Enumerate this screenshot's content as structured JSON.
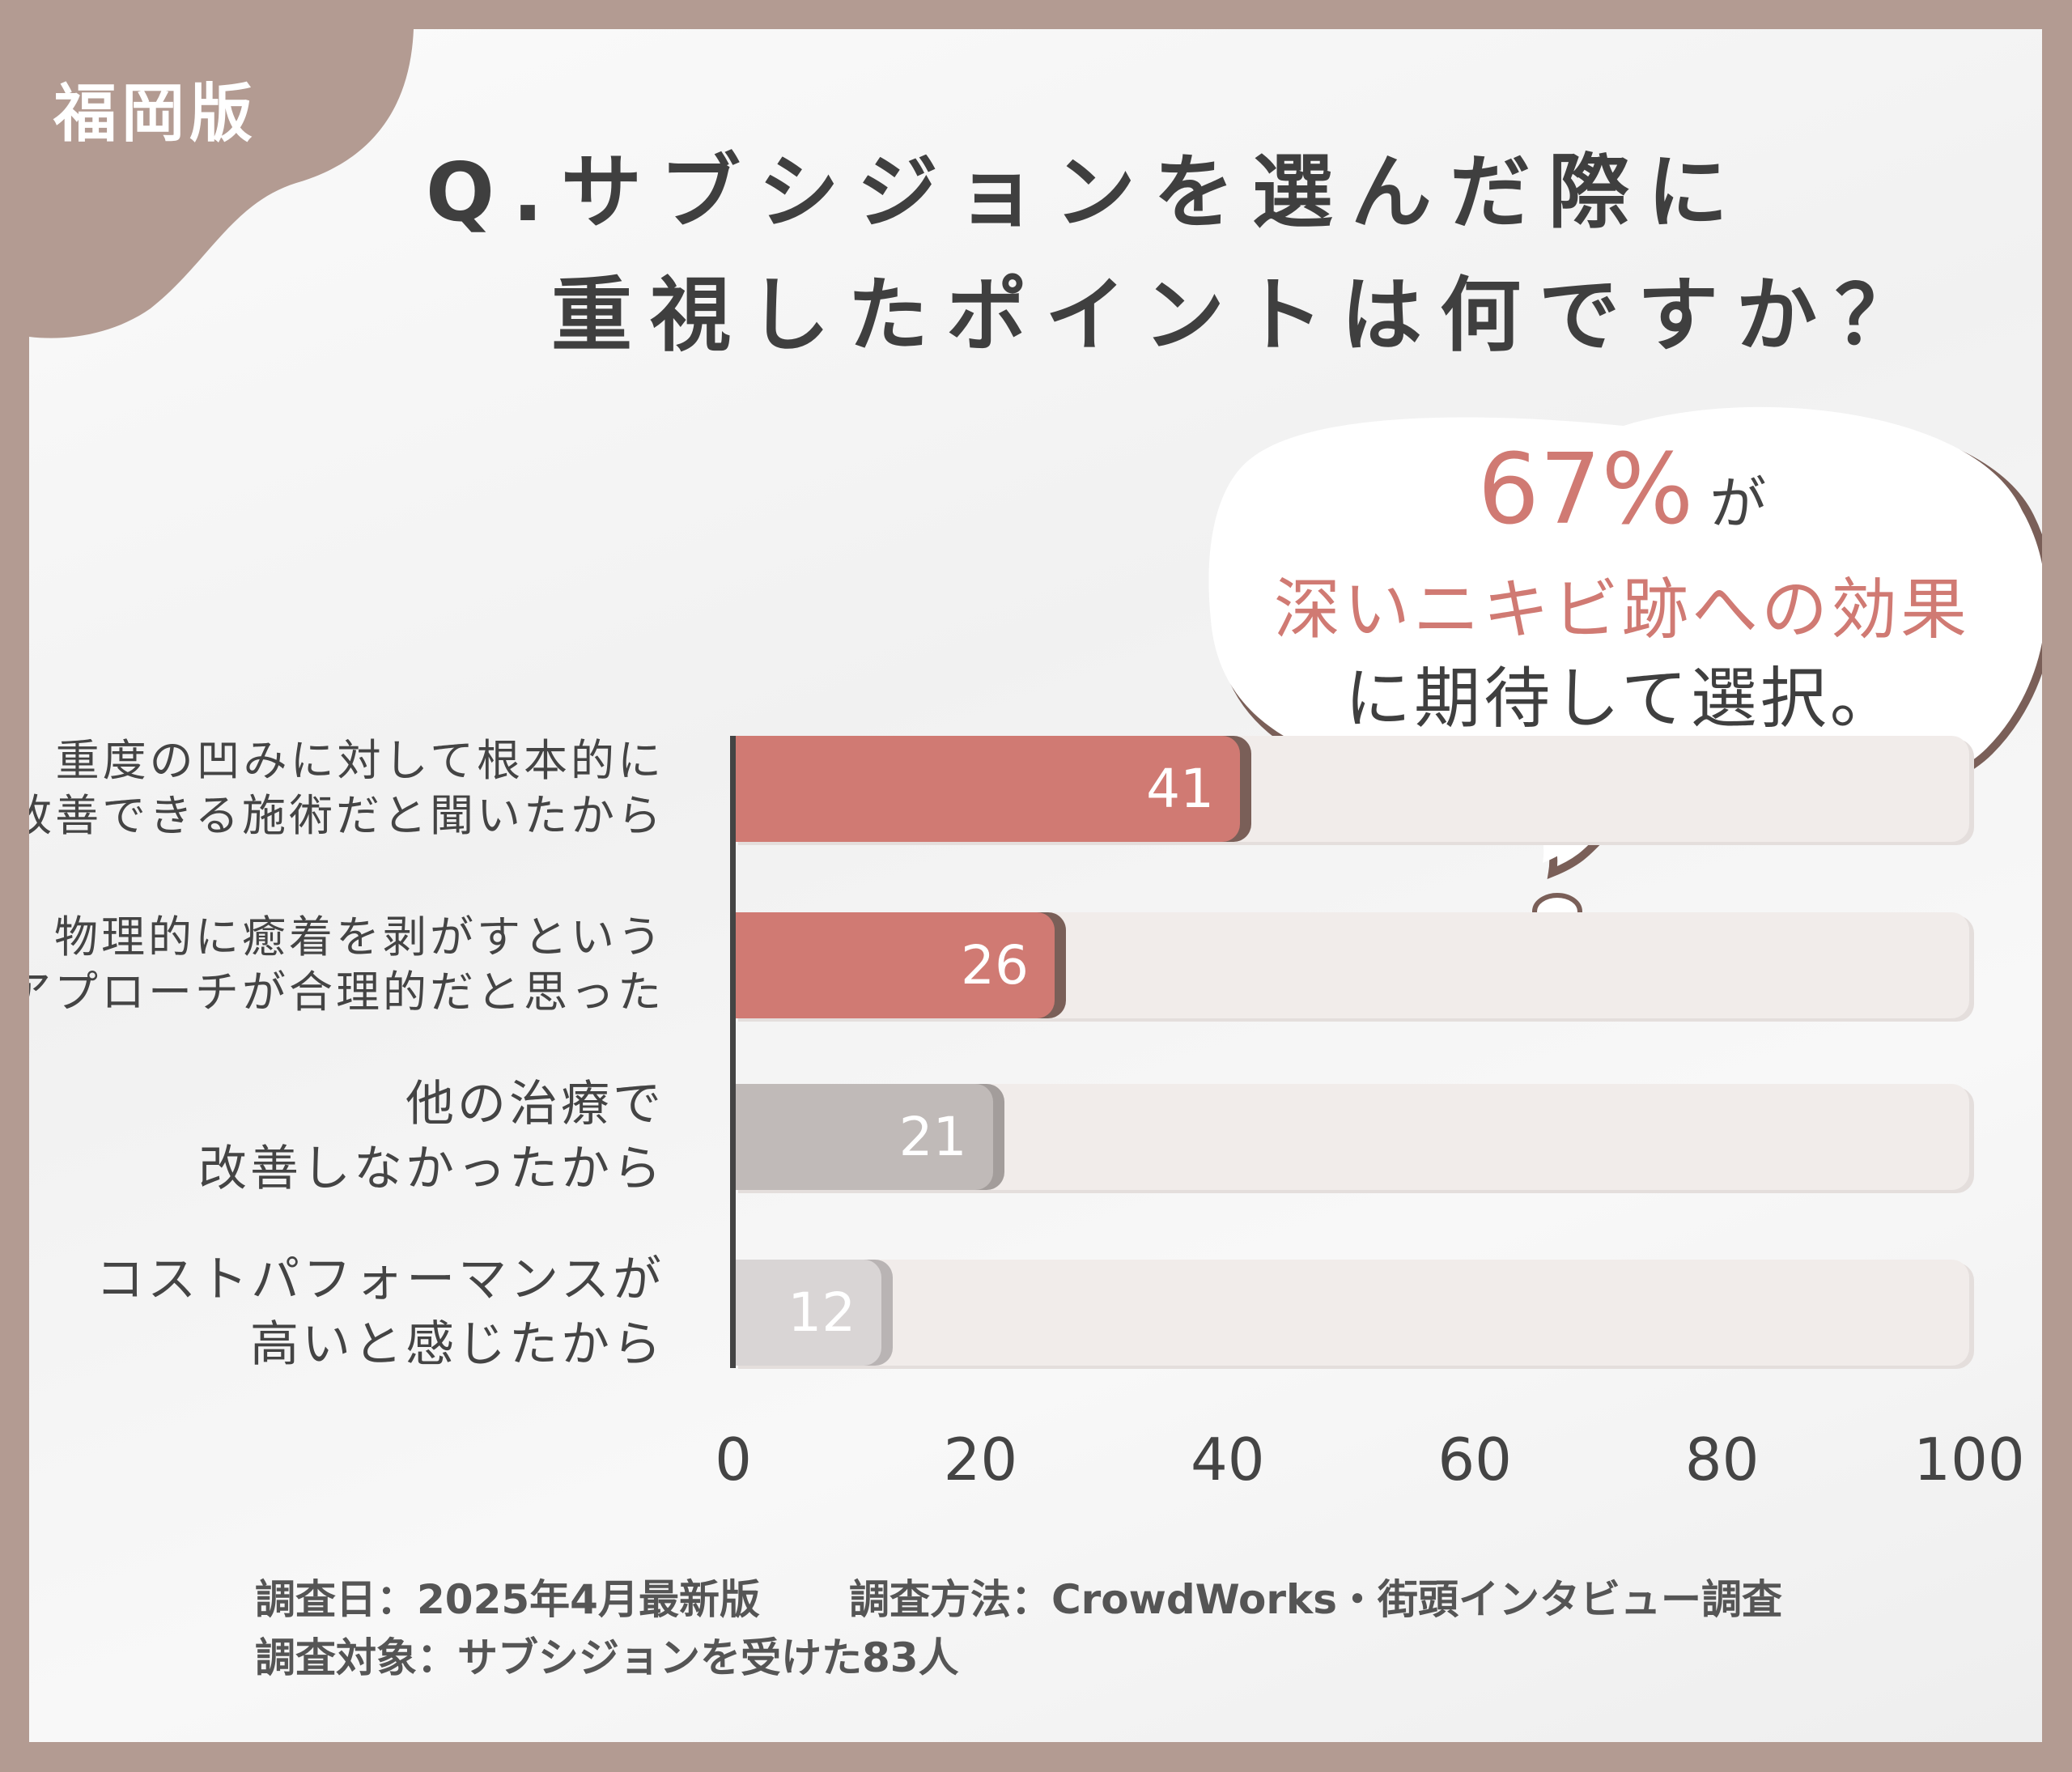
{
  "badge": "福岡版",
  "title": {
    "line1": "Q.サブシジョンを選んだ際に",
    "line2": "重視したポイントは何ですか？"
  },
  "callout": {
    "percent": "67%",
    "particle": "が",
    "highlight": "深いニキビ跡への効果",
    "rest": "に期待して選択。"
  },
  "chart_data": {
    "type": "bar",
    "orientation": "horizontal",
    "categories": [
      [
        "重度の凹みに対して根本的に",
        "改善できる施術だと聞いたから"
      ],
      [
        "物理的に癒着を剥がすという",
        "アプローチが合理的だと思った"
      ],
      [
        "他の治療で",
        "改善しなかったから"
      ],
      [
        "コストパフォーマンスが",
        "高いと感じたから"
      ]
    ],
    "values": [
      41,
      26,
      21,
      12
    ],
    "value_labels": [
      "41",
      "26",
      "21",
      "12"
    ],
    "colors": [
      "#d07a73",
      "#d07a73",
      "#c0bab8",
      "#d9d5d5"
    ],
    "shadow_colors": [
      "#7a5f58",
      "#7a5f58",
      "#a39d9b",
      "#b9b4b4"
    ],
    "xlim": [
      0,
      100
    ],
    "ticks": [
      "0",
      "20",
      "40",
      "60",
      "80",
      "100"
    ],
    "grid": false
  },
  "footer": {
    "line1a": "調査日：2025年4月最新版",
    "line1b": "調査方法：CrowdWorks・街頭インタビュー調査",
    "line2": "調査対象：サブシジョンを受けた83人"
  }
}
